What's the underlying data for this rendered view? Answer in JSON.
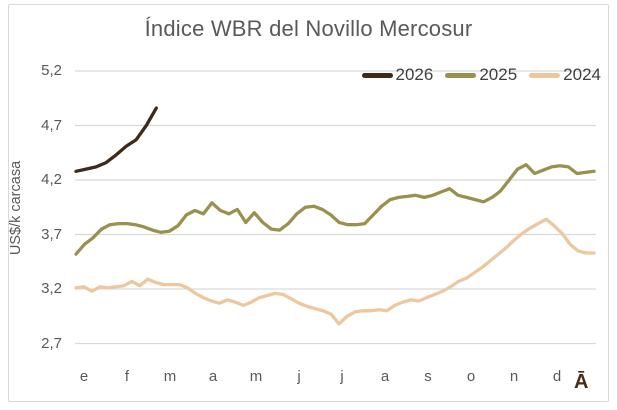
{
  "title": "Índice WBR del Novillo Mercosur",
  "y_axis": {
    "label": "US$/k carcasa",
    "ticks": [
      "5,2",
      "4,7",
      "4,2",
      "3,7",
      "3,2",
      "2,7"
    ]
  },
  "x_axis": {
    "ticks": [
      "e",
      "f",
      "m",
      "a",
      "m",
      "j",
      "j",
      "a",
      "s",
      "o",
      "n",
      "d"
    ],
    "extra_label": "Ā"
  },
  "colors": {
    "series_2026": "#3E2A18",
    "series_2025": "#99914E",
    "series_2024": "#EFC79F",
    "gridline": "#D9D9D9",
    "axis_text": "#595959",
    "frame_border": "#D9D9D9",
    "extra_label": "#4A2D17"
  },
  "chart_data": {
    "type": "line",
    "title": "Índice WBR del Novillo Mercosur",
    "xlabel": "",
    "ylabel": "US$/k carcasa",
    "ylim": [
      2.7,
      5.2
    ],
    "y_tick_step": 0.5,
    "grid": "horizontal",
    "legend_position": "top-right",
    "categories": [
      "e",
      "f",
      "m",
      "a",
      "m",
      "j",
      "j",
      "a",
      "s",
      "o",
      "n",
      "d"
    ],
    "series": [
      {
        "name": "2026",
        "color": "#3E2A18",
        "coverage": "January to early March",
        "end_x_frac": 0.155,
        "values": [
          4.28,
          4.3,
          4.32,
          4.36,
          4.43,
          4.51,
          4.57,
          4.7,
          4.86
        ]
      },
      {
        "name": "2025",
        "color": "#99914E",
        "coverage": "full year",
        "end_x_frac": 1,
        "values": [
          3.52,
          3.61,
          3.67,
          3.75,
          3.79,
          3.8,
          3.8,
          3.79,
          3.77,
          3.74,
          3.72,
          3.73,
          3.78,
          3.88,
          3.92,
          3.89,
          3.99,
          3.92,
          3.89,
          3.93,
          3.81,
          3.9,
          3.81,
          3.75,
          3.74,
          3.8,
          3.89,
          3.95,
          3.96,
          3.93,
          3.88,
          3.81,
          3.79,
          3.79,
          3.8,
          3.88,
          3.96,
          4.02,
          4.04,
          4.05,
          4.06,
          4.04,
          4.06,
          4.09,
          4.12,
          4.06,
          4.04,
          4.02,
          4.0,
          4.04,
          4.1,
          4.2,
          4.3,
          4.34,
          4.26,
          4.29,
          4.32,
          4.33,
          4.32,
          4.26,
          4.27,
          4.28
        ]
      },
      {
        "name": "2024",
        "color": "#EFC79F",
        "coverage": "full year",
        "end_x_frac": 1,
        "values": [
          3.21,
          3.22,
          3.18,
          3.22,
          3.21,
          3.22,
          3.23,
          3.27,
          3.23,
          3.29,
          3.26,
          3.24,
          3.24,
          3.24,
          3.21,
          3.16,
          3.12,
          3.09,
          3.07,
          3.1,
          3.08,
          3.05,
          3.08,
          3.12,
          3.14,
          3.16,
          3.15,
          3.11,
          3.07,
          3.04,
          3.02,
          3.0,
          2.97,
          2.88,
          2.95,
          2.99,
          3.0,
          3.0,
          3.01,
          3.0,
          3.05,
          3.08,
          3.1,
          3.09,
          3.12,
          3.15,
          3.18,
          3.22,
          3.27,
          3.3,
          3.35,
          3.4,
          3.46,
          3.52,
          3.58,
          3.65,
          3.71,
          3.76,
          3.8,
          3.84,
          3.78,
          3.71,
          3.61,
          3.55,
          3.53,
          3.53
        ]
      }
    ]
  }
}
